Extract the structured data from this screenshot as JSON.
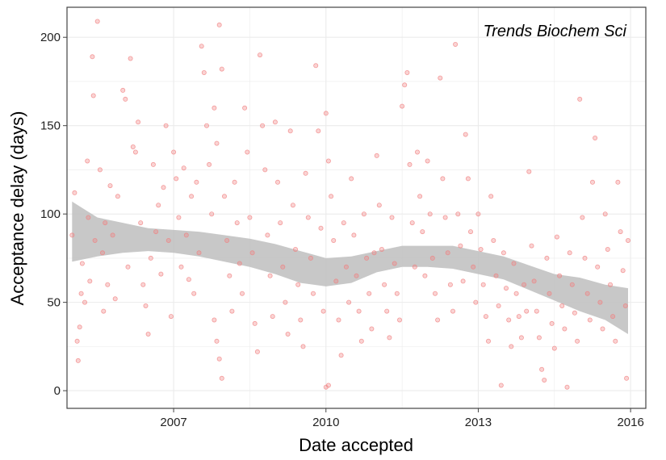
{
  "chart_data": {
    "type": "scatter",
    "annotation": "Trends Biochem Sci",
    "xlabel": "Date accepted",
    "ylabel": "Acceptance delay (days)",
    "xlim": [
      2004.9,
      2016.3
    ],
    "ylim": [
      -10,
      217
    ],
    "x_ticks": [
      2007,
      2010,
      2013,
      2016
    ],
    "y_ticks": [
      0,
      50,
      100,
      150,
      200
    ],
    "grid": true,
    "colors": {
      "points": "#f08080",
      "smooth_band": "#bebebe",
      "grid": "#ebebeb",
      "axes": "#444444"
    },
    "points": [
      [
        2005.0,
        88
      ],
      [
        2005.05,
        112
      ],
      [
        2005.1,
        28
      ],
      [
        2005.12,
        17
      ],
      [
        2005.15,
        36
      ],
      [
        2005.18,
        55
      ],
      [
        2005.2,
        72
      ],
      [
        2005.25,
        50
      ],
      [
        2005.3,
        130
      ],
      [
        2005.32,
        98
      ],
      [
        2005.35,
        62
      ],
      [
        2005.4,
        189
      ],
      [
        2005.42,
        167
      ],
      [
        2005.45,
        85
      ],
      [
        2005.5,
        209
      ],
      [
        2005.55,
        125
      ],
      [
        2005.6,
        78
      ],
      [
        2005.62,
        45
      ],
      [
        2005.65,
        95
      ],
      [
        2005.7,
        60
      ],
      [
        2005.75,
        116
      ],
      [
        2005.8,
        88
      ],
      [
        2005.85,
        52
      ],
      [
        2005.9,
        110
      ],
      [
        2006.0,
        170
      ],
      [
        2006.05,
        165
      ],
      [
        2006.1,
        70
      ],
      [
        2006.15,
        188
      ],
      [
        2006.2,
        138
      ],
      [
        2006.25,
        135
      ],
      [
        2006.3,
        152
      ],
      [
        2006.35,
        95
      ],
      [
        2006.4,
        60
      ],
      [
        2006.45,
        48
      ],
      [
        2006.5,
        32
      ],
      [
        2006.55,
        75
      ],
      [
        2006.6,
        128
      ],
      [
        2006.65,
        90
      ],
      [
        2006.7,
        105
      ],
      [
        2006.75,
        66
      ],
      [
        2006.8,
        115
      ],
      [
        2006.85,
        150
      ],
      [
        2006.9,
        85
      ],
      [
        2006.95,
        42
      ],
      [
        2007.0,
        135
      ],
      [
        2007.05,
        120
      ],
      [
        2007.1,
        98
      ],
      [
        2007.15,
        70
      ],
      [
        2007.2,
        126
      ],
      [
        2007.25,
        88
      ],
      [
        2007.3,
        63
      ],
      [
        2007.35,
        110
      ],
      [
        2007.4,
        55
      ],
      [
        2007.45,
        118
      ],
      [
        2007.5,
        78
      ],
      [
        2007.55,
        195
      ],
      [
        2007.6,
        180
      ],
      [
        2007.65,
        150
      ],
      [
        2007.7,
        128
      ],
      [
        2007.75,
        100
      ],
      [
        2007.8,
        160
      ],
      [
        2007.85,
        140
      ],
      [
        2007.9,
        207
      ],
      [
        2007.95,
        182
      ],
      [
        2007.85,
        28
      ],
      [
        2007.9,
        18
      ],
      [
        2007.95,
        7
      ],
      [
        2007.8,
        40
      ],
      [
        2008.0,
        110
      ],
      [
        2008.05,
        85
      ],
      [
        2008.1,
        65
      ],
      [
        2008.15,
        45
      ],
      [
        2008.2,
        118
      ],
      [
        2008.25,
        95
      ],
      [
        2008.3,
        72
      ],
      [
        2008.35,
        55
      ],
      [
        2008.4,
        160
      ],
      [
        2008.45,
        135
      ],
      [
        2008.5,
        98
      ],
      [
        2008.55,
        78
      ],
      [
        2008.6,
        38
      ],
      [
        2008.65,
        22
      ],
      [
        2008.7,
        190
      ],
      [
        2008.75,
        150
      ],
      [
        2008.8,
        125
      ],
      [
        2008.85,
        88
      ],
      [
        2008.9,
        65
      ],
      [
        2008.95,
        42
      ],
      [
        2009.0,
        152
      ],
      [
        2009.05,
        118
      ],
      [
        2009.1,
        95
      ],
      [
        2009.15,
        70
      ],
      [
        2009.2,
        50
      ],
      [
        2009.25,
        32
      ],
      [
        2009.3,
        147
      ],
      [
        2009.35,
        105
      ],
      [
        2009.4,
        80
      ],
      [
        2009.45,
        60
      ],
      [
        2009.5,
        40
      ],
      [
        2009.55,
        25
      ],
      [
        2009.6,
        123
      ],
      [
        2009.65,
        98
      ],
      [
        2009.7,
        75
      ],
      [
        2009.75,
        55
      ],
      [
        2009.8,
        184
      ],
      [
        2009.85,
        147
      ],
      [
        2009.9,
        92
      ],
      [
        2009.95,
        45
      ],
      [
        2010.0,
        157
      ],
      [
        2010.05,
        130
      ],
      [
        2010.1,
        110
      ],
      [
        2010.15,
        85
      ],
      [
        2010.2,
        62
      ],
      [
        2010.25,
        40
      ],
      [
        2010.3,
        20
      ],
      [
        2010.0,
        2
      ],
      [
        2010.05,
        3
      ],
      [
        2010.35,
        95
      ],
      [
        2010.4,
        70
      ],
      [
        2010.45,
        50
      ],
      [
        2010.5,
        120
      ],
      [
        2010.55,
        88
      ],
      [
        2010.6,
        65
      ],
      [
        2010.65,
        45
      ],
      [
        2010.7,
        28
      ],
      [
        2010.75,
        100
      ],
      [
        2010.8,
        75
      ],
      [
        2010.85,
        55
      ],
      [
        2010.9,
        35
      ],
      [
        2010.95,
        78
      ],
      [
        2011.0,
        133
      ],
      [
        2011.05,
        105
      ],
      [
        2011.1,
        80
      ],
      [
        2011.15,
        60
      ],
      [
        2011.2,
        45
      ],
      [
        2011.25,
        30
      ],
      [
        2011.3,
        98
      ],
      [
        2011.35,
        72
      ],
      [
        2011.4,
        55
      ],
      [
        2011.45,
        40
      ],
      [
        2011.5,
        161
      ],
      [
        2011.55,
        173
      ],
      [
        2011.6,
        180
      ],
      [
        2011.65,
        128
      ],
      [
        2011.7,
        95
      ],
      [
        2011.75,
        70
      ],
      [
        2011.8,
        135
      ],
      [
        2011.85,
        110
      ],
      [
        2011.9,
        90
      ],
      [
        2011.95,
        65
      ],
      [
        2012.0,
        130
      ],
      [
        2012.05,
        100
      ],
      [
        2012.1,
        75
      ],
      [
        2012.15,
        55
      ],
      [
        2012.2,
        40
      ],
      [
        2012.25,
        177
      ],
      [
        2012.3,
        120
      ],
      [
        2012.35,
        98
      ],
      [
        2012.4,
        78
      ],
      [
        2012.45,
        60
      ],
      [
        2012.5,
        45
      ],
      [
        2012.55,
        196
      ],
      [
        2012.6,
        100
      ],
      [
        2012.65,
        82
      ],
      [
        2012.7,
        62
      ],
      [
        2012.75,
        145
      ],
      [
        2012.8,
        120
      ],
      [
        2012.85,
        90
      ],
      [
        2012.9,
        70
      ],
      [
        2012.95,
        50
      ],
      [
        2013.0,
        100
      ],
      [
        2013.05,
        80
      ],
      [
        2013.1,
        60
      ],
      [
        2013.15,
        42
      ],
      [
        2013.2,
        28
      ],
      [
        2013.25,
        110
      ],
      [
        2013.3,
        85
      ],
      [
        2013.35,
        65
      ],
      [
        2013.4,
        48
      ],
      [
        2013.45,
        3
      ],
      [
        2013.5,
        78
      ],
      [
        2013.55,
        58
      ],
      [
        2013.6,
        40
      ],
      [
        2013.65,
        25
      ],
      [
        2013.7,
        72
      ],
      [
        2013.75,
        55
      ],
      [
        2013.8,
        42
      ],
      [
        2013.85,
        30
      ],
      [
        2013.9,
        60
      ],
      [
        2013.95,
        45
      ],
      [
        2014.0,
        124
      ],
      [
        2014.05,
        82
      ],
      [
        2014.1,
        62
      ],
      [
        2014.15,
        45
      ],
      [
        2014.2,
        30
      ],
      [
        2014.25,
        12
      ],
      [
        2014.3,
        6
      ],
      [
        2014.35,
        75
      ],
      [
        2014.4,
        55
      ],
      [
        2014.45,
        38
      ],
      [
        2014.5,
        24
      ],
      [
        2014.55,
        87
      ],
      [
        2014.6,
        65
      ],
      [
        2014.65,
        48
      ],
      [
        2014.7,
        35
      ],
      [
        2014.75,
        2
      ],
      [
        2014.8,
        78
      ],
      [
        2014.85,
        60
      ],
      [
        2014.9,
        44
      ],
      [
        2014.95,
        28
      ],
      [
        2015.0,
        165
      ],
      [
        2015.05,
        98
      ],
      [
        2015.1,
        75
      ],
      [
        2015.15,
        55
      ],
      [
        2015.2,
        40
      ],
      [
        2015.25,
        118
      ],
      [
        2015.3,
        143
      ],
      [
        2015.35,
        70
      ],
      [
        2015.4,
        50
      ],
      [
        2015.45,
        35
      ],
      [
        2015.5,
        100
      ],
      [
        2015.55,
        80
      ],
      [
        2015.6,
        60
      ],
      [
        2015.65,
        42
      ],
      [
        2015.7,
        28
      ],
      [
        2015.75,
        118
      ],
      [
        2015.8,
        90
      ],
      [
        2015.85,
        68
      ],
      [
        2015.9,
        48
      ],
      [
        2015.92,
        7
      ],
      [
        2015.95,
        85
      ]
    ],
    "smooth": {
      "x": [
        2005.0,
        2005.5,
        2006.0,
        2006.5,
        2007.0,
        2007.5,
        2008.0,
        2008.5,
        2009.0,
        2009.5,
        2010.0,
        2010.5,
        2011.0,
        2011.5,
        2012.0,
        2012.5,
        2013.0,
        2013.5,
        2014.0,
        2014.5,
        2015.0,
        2015.5,
        2015.95
      ],
      "fit": [
        88,
        86,
        86,
        85,
        84,
        83,
        81,
        78,
        74,
        70,
        67,
        68,
        73,
        76,
        76,
        75,
        72,
        69,
        64,
        59,
        54,
        50,
        46
      ],
      "lower": [
        73,
        76,
        78,
        79,
        78,
        76,
        73,
        70,
        66,
        61,
        59,
        61,
        67,
        70,
        70,
        69,
        66,
        63,
        57,
        51,
        45,
        40,
        32
      ],
      "upper": [
        107,
        98,
        95,
        92,
        91,
        90,
        88,
        86,
        83,
        79,
        75,
        76,
        79,
        82,
        82,
        82,
        79,
        76,
        71,
        66,
        64,
        60,
        58
      ]
    }
  }
}
